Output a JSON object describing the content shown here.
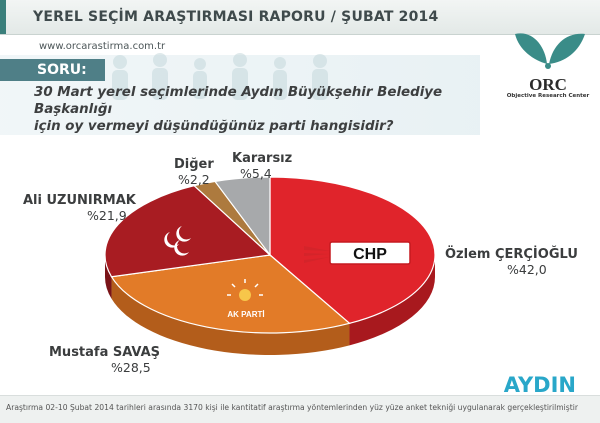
{
  "header": {
    "title": "YEREL SEÇİM ARAŞTIRMASI RAPORU / ŞUBAT 2014"
  },
  "website": "www.orcarastirma.com.tr",
  "soru_label": "SORU:",
  "question": {
    "line1": "30 Mart yerel seçimlerinde Aydın Büyükşehir Belediye Başkanlığı",
    "line2": "için oy vermeyi düşündüğünüz parti hangisidir?"
  },
  "logo": {
    "text": "ORC",
    "subtitle": "Objective Research Center"
  },
  "colors": {
    "chp": "#e0242b",
    "akp": "#e27b28",
    "mhp": "#a81c22",
    "diger": "#ad7a3e",
    "kararsiz": "#a7a9ab",
    "accent": "#4f7f87",
    "city": "#29a7c9"
  },
  "chart_data": {
    "type": "pie",
    "title": "",
    "slices": [
      {
        "name": "Özlem ÇERÇİOĞLU",
        "label": "%42,0",
        "value": 42.0,
        "party": "CHP"
      },
      {
        "name": "Mustafa SAVAŞ",
        "label": "%28,5",
        "value": 28.5,
        "party": "AK PARTİ"
      },
      {
        "name": "Ali UZUNIRMAK",
        "label": "%21,9",
        "value": 21.9,
        "party": "MHP"
      },
      {
        "name": "Diğer",
        "label": "%2,2",
        "value": 2.2
      },
      {
        "name": "Kararsız",
        "label": "%5,4",
        "value": 5.4
      }
    ]
  },
  "party_logos": {
    "chp": "CHP",
    "akp": "AK PARTİ"
  },
  "city": "AYDIN",
  "footnote": "Araştırma 02-10 Şubat 2014 tarihleri arasında 3170 kişi ile kantitatif araştırma yöntemlerinden yüz yüze anket tekniği uygulanarak gerçekleştirilmiştir"
}
